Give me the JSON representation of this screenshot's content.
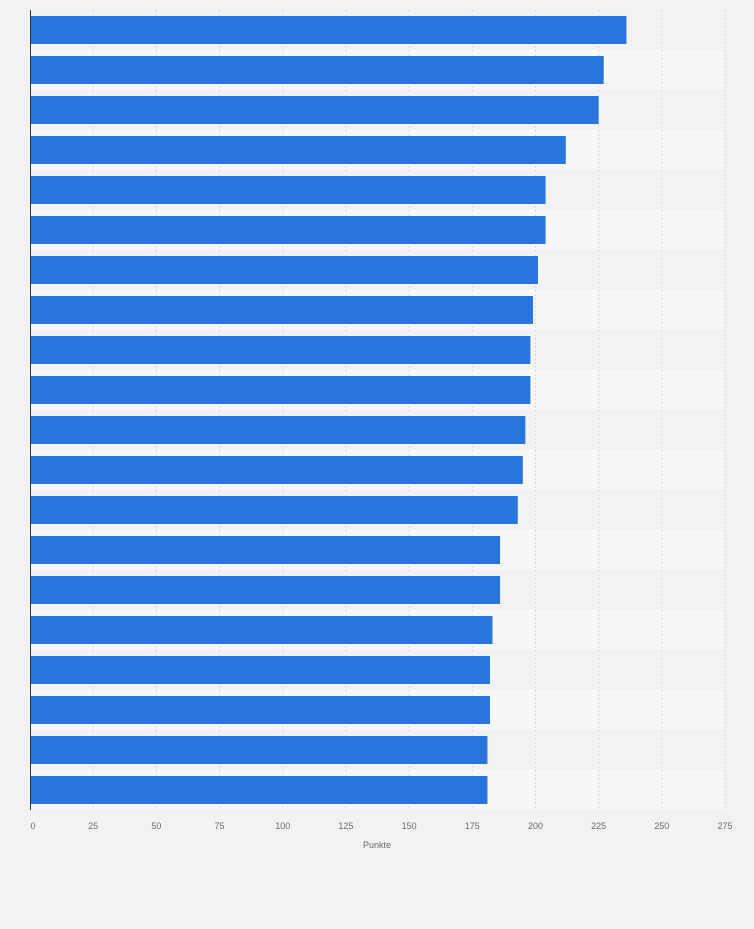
{
  "chart_data": {
    "type": "bar",
    "orientation": "horizontal",
    "xlabel": "Punkte",
    "xlim": [
      0,
      275
    ],
    "xticks": [
      "0",
      "25",
      "50",
      "75",
      "100",
      "125",
      "150",
      "175",
      "200",
      "225",
      "250",
      "275"
    ],
    "grid": true,
    "values": [
      236,
      227,
      225,
      212,
      204,
      204,
      201,
      199,
      198,
      198,
      196,
      195,
      193,
      186,
      186,
      183,
      182,
      182,
      181,
      181
    ],
    "colors": {
      "bar": "#2876dd",
      "band_light": "#f7f7f7",
      "band_dark": "#f2f2f2",
      "grid": "#d9d9d9",
      "axis": "#333333"
    }
  }
}
